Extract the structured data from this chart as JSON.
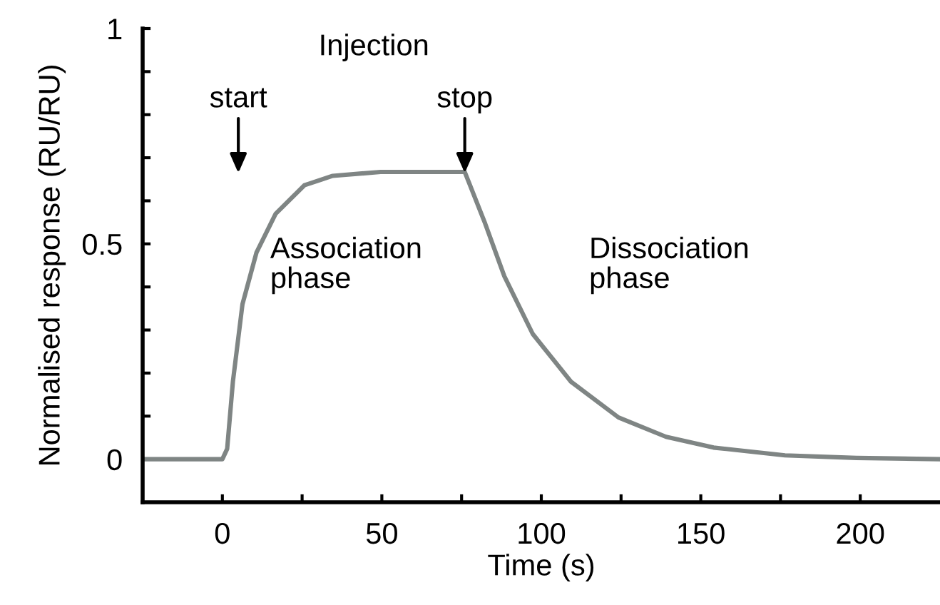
{
  "chart_data": {
    "type": "line",
    "xlabel": "Time (s)",
    "ylabel": "Normalised response (RU/RU)",
    "x": [
      -25,
      0,
      1.5,
      3.3,
      6.3,
      10.7,
      16.7,
      25.7,
      34.6,
      49.6,
      76,
      82.4,
      88.4,
      97.3,
      109.3,
      124.2,
      139.1,
      154,
      176.4,
      198.8,
      225
    ],
    "series": [
      {
        "color": "#7f8584",
        "values": [
          0,
          0,
          0.024,
          0.18,
          0.36,
          0.48,
          0.57,
          0.636,
          0.658,
          0.667,
          0.667,
          0.547,
          0.425,
          0.291,
          0.18,
          0.097,
          0.052,
          0.027,
          0.009,
          0.003,
          0
        ]
      }
    ],
    "xlim": [
      -25,
      225
    ],
    "ylim": [
      -0.1,
      1
    ],
    "xticks": [
      0,
      {
        "value": 25,
        "label": null
      },
      50,
      {
        "value": 75,
        "label": null
      },
      100,
      {
        "value": 125,
        "label": null
      },
      150,
      {
        "value": 175,
        "label": null
      },
      200
    ],
    "yticks": [
      0,
      {
        "value": 0.1,
        "label": null
      },
      {
        "value": 0.2,
        "label": null
      },
      {
        "value": 0.3,
        "label": null
      },
      {
        "value": 0.4,
        "label": null
      },
      0.5,
      {
        "value": 0.6,
        "label": null
      },
      {
        "value": 0.7,
        "label": null
      },
      {
        "value": 0.8,
        "label": null
      },
      {
        "value": 0.9,
        "label": null
      },
      1
    ],
    "annotations": [
      "Injection",
      "start",
      "stop",
      "Association\nphase",
      "Dissociation\nphase"
    ],
    "grid": false,
    "legend": false,
    "line_style": "solid",
    "marker": "none"
  }
}
